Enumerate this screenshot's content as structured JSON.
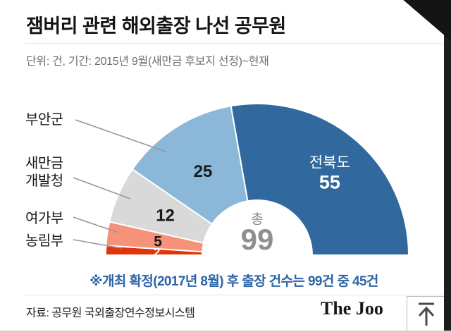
{
  "header": {
    "title": "잼버리 관련 해외출장 나선 공무원",
    "subtitle": "단위: 건, 기간: 2015년 9월(새만금 후보지 선정)~현재"
  },
  "chart_data": {
    "type": "pie",
    "variant": "semicircle-donut",
    "title": "잼버리 관련 해외출장 나선 공무원",
    "unit": "건",
    "total_label": "총",
    "total": 99,
    "segments": [
      {
        "label": "농림부",
        "value": 2,
        "color": "#e23408",
        "value_color": "#ffffff",
        "label_inside": false
      },
      {
        "label": "여가부",
        "value": 5,
        "color": "#f6917a",
        "value_color": "#1a1a1a",
        "label_inside": false
      },
      {
        "label": "새만금개발청",
        "value": 12,
        "color": "#d9d9d9",
        "value_color": "#1a1a1a",
        "label_inside": false
      },
      {
        "label": "부안군",
        "value": 25,
        "color": "#8bb8d8",
        "value_color": "#1a1a1a",
        "label_inside": false
      },
      {
        "label": "전북도",
        "value": 55,
        "color": "#31689e",
        "value_color": "#ffffff",
        "label_inside": true
      }
    ],
    "legend_position": "left-callouts",
    "grid": false
  },
  "note": "※개최 확정(2017년 8월) 후 출장 건수는 99건 중 45건",
  "source": "자료: 공무원 국외출장연수정보시스템",
  "footer": {
    "brand": "The Joo",
    "scroll_top_icon": "scroll-to-top-arrow-icon"
  }
}
